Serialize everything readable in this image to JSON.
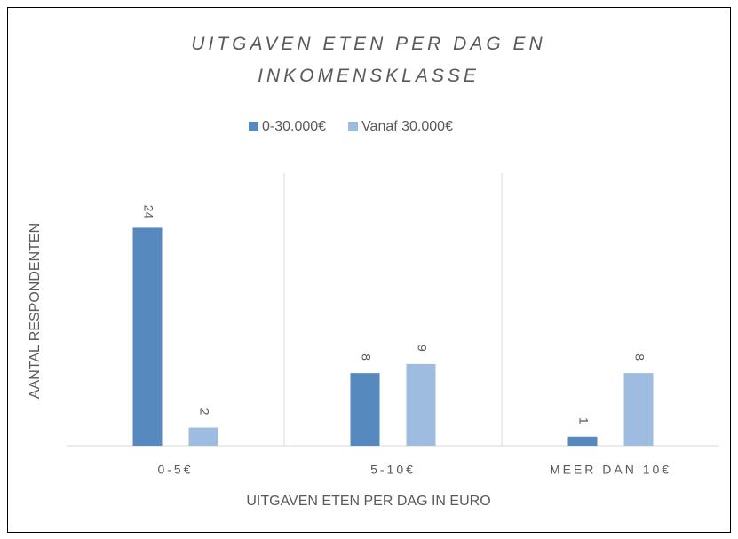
{
  "chart_data": {
    "type": "bar",
    "title": "UITGAVEN ETEN PER DAG EN INKOMENSKLASSE",
    "x_label": "UITGAVEN ETEN PER DAG IN EURO",
    "y_label": "AANTAL RESPONDENTEN",
    "categories": [
      "0-5€",
      "5-10€",
      "MEER DAN 10€"
    ],
    "series": [
      {
        "name": "0-30.000€",
        "color": "#5689bd",
        "values": [
          24,
          8,
          1
        ]
      },
      {
        "name": "Vanaf 30.000€",
        "color": "#9dbce0",
        "values": [
          2,
          9,
          8
        ]
      }
    ],
    "ylim": [
      0,
      30
    ],
    "legend": "top"
  }
}
